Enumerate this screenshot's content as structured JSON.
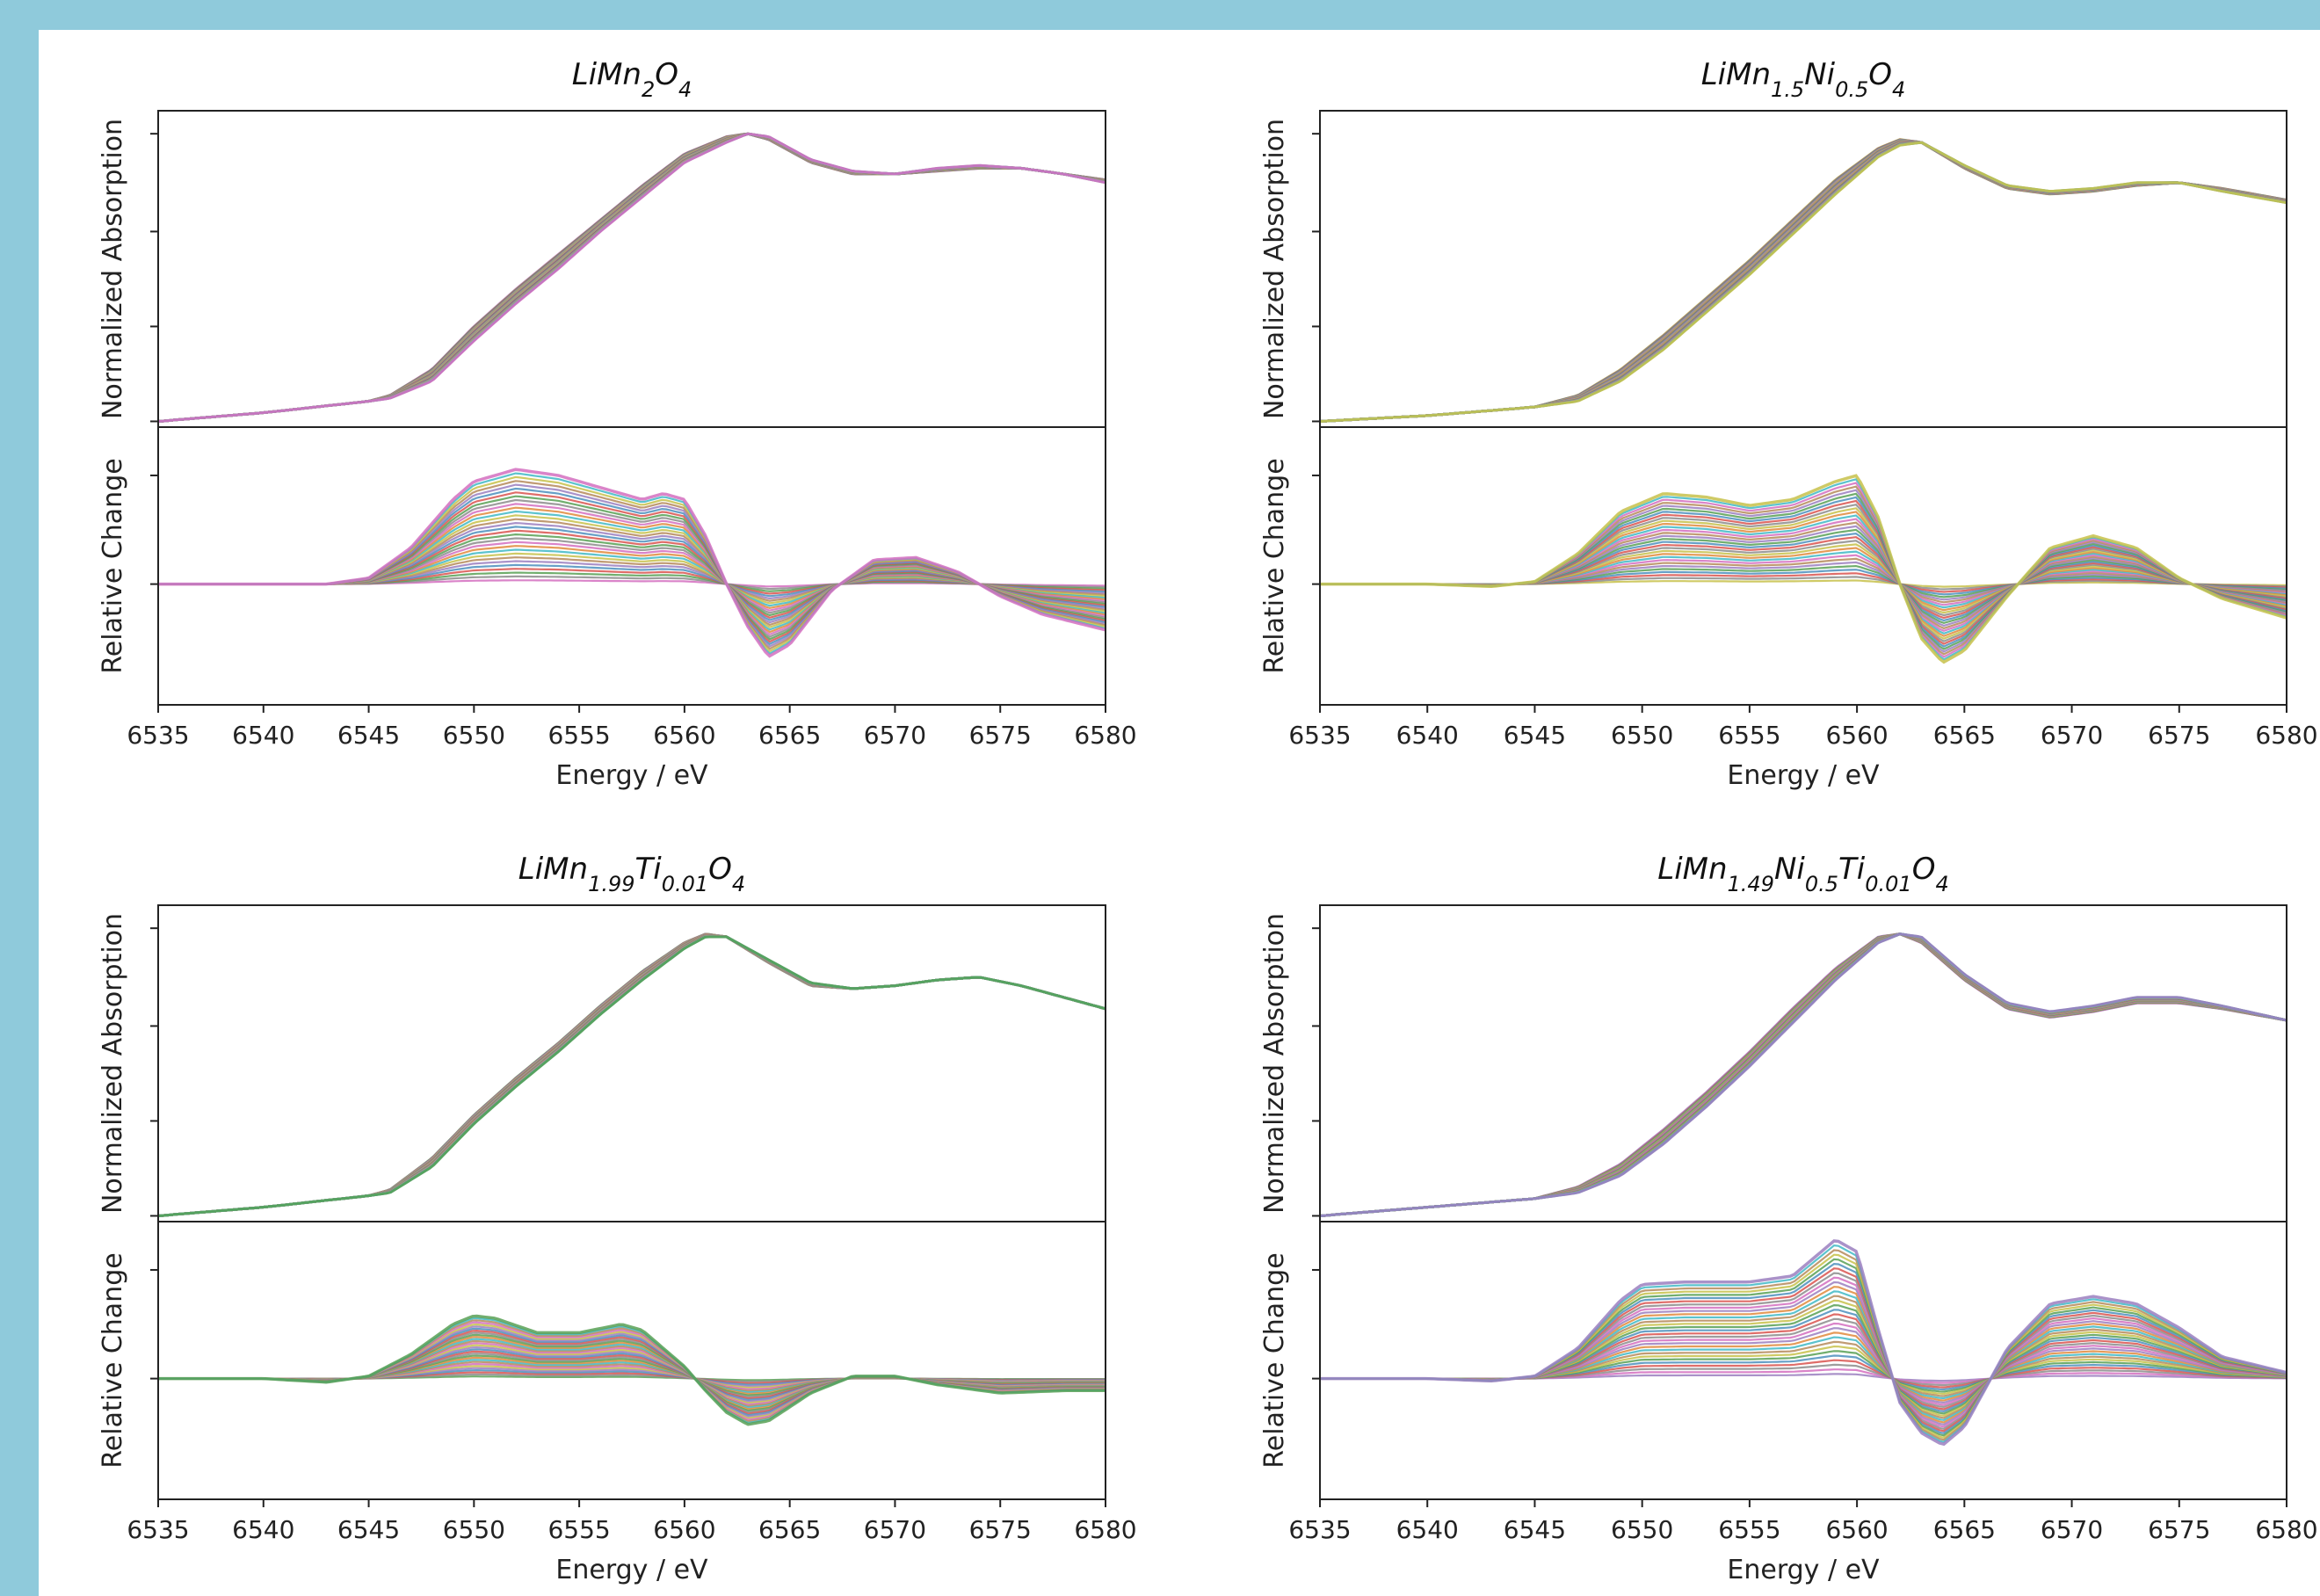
{
  "chart_data": [
    {
      "type": "line",
      "title": {
        "parts": [
          [
            "Li",
            ""
          ],
          [
            "Mn",
            ""
          ],
          [
            "2",
            "sub"
          ],
          [
            "O",
            ""
          ],
          [
            "4",
            "sub"
          ]
        ]
      },
      "top_ylabel": "Normalized Absorption",
      "bottom_ylabel": "Relative Change",
      "xlabel": "Energy / eV",
      "xlim": [
        6535,
        6580
      ],
      "x_ticks": [
        "6535",
        "6540",
        "6545",
        "6550",
        "6555",
        "6560",
        "6565",
        "6570",
        "6575",
        "6580"
      ],
      "colors": [
        "#d36fc0",
        "#8c8c8c",
        "#58a055",
        "#d9534f",
        "#4c8fbd",
        "#9b7fbf",
        "#b58a5a",
        "#c7c14a",
        "#3fb8c6",
        "#e08a3c"
      ],
      "edge_color": "#d36fc0",
      "series_count": 30,
      "absorption": {
        "x": [
          6535,
          6540,
          6545,
          6546,
          6548,
          6550,
          6552,
          6554,
          6556,
          6558,
          6560,
          6562,
          6563,
          6564,
          6566,
          6568,
          6570,
          6572,
          6574,
          6576,
          6578,
          6580
        ],
        "start": [
          0.0,
          0.03,
          0.07,
          0.09,
          0.18,
          0.33,
          0.46,
          0.58,
          0.7,
          0.82,
          0.93,
          0.99,
          1.0,
          0.98,
          0.9,
          0.86,
          0.86,
          0.87,
          0.88,
          0.88,
          0.86,
          0.84
        ],
        "end": [
          0.0,
          0.03,
          0.07,
          0.08,
          0.14,
          0.28,
          0.41,
          0.53,
          0.66,
          0.78,
          0.9,
          0.97,
          1.0,
          0.99,
          0.91,
          0.87,
          0.86,
          0.88,
          0.89,
          0.88,
          0.86,
          0.83
        ]
      },
      "relative_change": {
        "x": [
          6535,
          6540,
          6543,
          6545,
          6547,
          6549,
          6550,
          6552,
          6554,
          6556,
          6558,
          6559,
          6560,
          6561,
          6562,
          6563,
          6564,
          6565,
          6567,
          6569,
          6571,
          6573,
          6575,
          6577,
          6580
        ],
        "envelope": [
          0.0,
          0.0,
          0.0,
          0.05,
          0.3,
          0.7,
          0.85,
          0.95,
          0.9,
          0.8,
          0.7,
          0.75,
          0.7,
          0.4,
          0.0,
          -0.35,
          -0.6,
          -0.5,
          -0.05,
          0.2,
          0.22,
          0.1,
          -0.1,
          -0.25,
          -0.38
        ]
      },
      "top_ylim": [
        -0.02,
        1.08
      ],
      "bottom_ylim": [
        -1.0,
        1.3
      ]
    },
    {
      "type": "line",
      "title": {
        "parts": [
          [
            "Li",
            ""
          ],
          [
            "Mn",
            ""
          ],
          [
            "1.5",
            "sub"
          ],
          [
            "Ni",
            ""
          ],
          [
            "0.5",
            "sub"
          ],
          [
            "O",
            ""
          ],
          [
            "4",
            "sub"
          ]
        ]
      },
      "top_ylabel": "Normalized Absorption",
      "bottom_ylabel": "Relative Change",
      "xlabel": "Energy / eV",
      "xlim": [
        6535,
        6580
      ],
      "x_ticks": [
        "6535",
        "6540",
        "6545",
        "6550",
        "6555",
        "6560",
        "6565",
        "6570",
        "6575",
        "6580"
      ],
      "colors": [
        "#c7c14a",
        "#8c8c8c",
        "#d9534f",
        "#4c8fbd",
        "#58a055",
        "#9b7fbf",
        "#b58a5a",
        "#d36fc0",
        "#3fb8c6",
        "#e08a3c"
      ],
      "edge_color": "#c7c14a",
      "series_count": 30,
      "absorption": {
        "x": [
          6535,
          6540,
          6545,
          6547,
          6549,
          6551,
          6553,
          6555,
          6557,
          6559,
          6561,
          6562,
          6563,
          6565,
          6567,
          6569,
          6571,
          6573,
          6575,
          6577,
          6580
        ],
        "start": [
          0.0,
          0.02,
          0.05,
          0.09,
          0.18,
          0.3,
          0.43,
          0.56,
          0.7,
          0.84,
          0.95,
          0.98,
          0.97,
          0.88,
          0.81,
          0.79,
          0.8,
          0.82,
          0.83,
          0.81,
          0.77
        ],
        "end": [
          0.0,
          0.02,
          0.05,
          0.07,
          0.14,
          0.25,
          0.38,
          0.51,
          0.65,
          0.79,
          0.92,
          0.96,
          0.97,
          0.89,
          0.82,
          0.8,
          0.81,
          0.83,
          0.83,
          0.8,
          0.76
        ]
      },
      "relative_change": {
        "x": [
          6535,
          6540,
          6543,
          6545,
          6547,
          6549,
          6551,
          6553,
          6555,
          6557,
          6559,
          6560,
          6561,
          6562,
          6563,
          6564,
          6565,
          6567,
          6569,
          6571,
          6573,
          6575,
          6577,
          6580
        ],
        "envelope": [
          0.0,
          0.0,
          -0.02,
          0.02,
          0.25,
          0.6,
          0.75,
          0.72,
          0.65,
          0.7,
          0.85,
          0.9,
          0.55,
          0.0,
          -0.45,
          -0.65,
          -0.55,
          -0.1,
          0.3,
          0.4,
          0.3,
          0.05,
          -0.12,
          -0.28
        ]
      },
      "top_ylim": [
        -0.02,
        1.08
      ],
      "bottom_ylim": [
        -1.0,
        1.3
      ]
    },
    {
      "type": "line",
      "title": {
        "parts": [
          [
            "Li",
            ""
          ],
          [
            "Mn",
            ""
          ],
          [
            "1.99",
            "sub"
          ],
          [
            "Ti",
            ""
          ],
          [
            "0.01",
            "sub"
          ],
          [
            "O",
            ""
          ],
          [
            "4",
            "sub"
          ]
        ]
      },
      "top_ylabel": "Normalized Absorption",
      "bottom_ylabel": "Relative Change",
      "xlabel": "Energy / eV",
      "xlim": [
        6535,
        6580
      ],
      "x_ticks": [
        "6535",
        "6540",
        "6545",
        "6550",
        "6555",
        "6560",
        "6565",
        "6570",
        "6575",
        "6580"
      ],
      "colors": [
        "#58a055",
        "#8c8c8c",
        "#d9534f",
        "#4c8fbd",
        "#9b7fbf",
        "#c7c14a",
        "#d36fc0",
        "#b58a5a",
        "#3fb8c6",
        "#e08a3c"
      ],
      "edge_color": "#58a055",
      "series_count": 30,
      "absorption": {
        "x": [
          6535,
          6540,
          6545,
          6546,
          6548,
          6550,
          6552,
          6554,
          6556,
          6558,
          6560,
          6561,
          6562,
          6564,
          6566,
          6568,
          6570,
          6572,
          6574,
          6576,
          6578,
          6580
        ],
        "start": [
          0.0,
          0.03,
          0.07,
          0.09,
          0.2,
          0.35,
          0.48,
          0.6,
          0.73,
          0.85,
          0.95,
          0.98,
          0.97,
          0.88,
          0.8,
          0.79,
          0.8,
          0.82,
          0.83,
          0.8,
          0.76,
          0.72
        ],
        "end": [
          0.0,
          0.03,
          0.07,
          0.08,
          0.17,
          0.32,
          0.45,
          0.57,
          0.7,
          0.82,
          0.93,
          0.97,
          0.97,
          0.89,
          0.81,
          0.79,
          0.8,
          0.82,
          0.83,
          0.8,
          0.76,
          0.72
        ]
      },
      "relative_change": {
        "x": [
          6535,
          6540,
          6543,
          6545,
          6547,
          6549,
          6550,
          6551,
          6553,
          6555,
          6557,
          6558,
          6560,
          6561,
          6562,
          6563,
          6564,
          6566,
          6568,
          6570,
          6572,
          6575,
          6578,
          6580
        ],
        "envelope": [
          0.0,
          0.0,
          -0.03,
          0.02,
          0.2,
          0.45,
          0.52,
          0.5,
          0.38,
          0.38,
          0.45,
          0.4,
          0.1,
          -0.1,
          -0.28,
          -0.38,
          -0.35,
          -0.12,
          0.02,
          0.02,
          -0.05,
          -0.12,
          -0.1,
          -0.1
        ]
      },
      "top_ylim": [
        -0.02,
        1.08
      ],
      "bottom_ylim": [
        -1.0,
        1.3
      ]
    },
    {
      "type": "line",
      "title": {
        "parts": [
          [
            "Li",
            ""
          ],
          [
            "Mn",
            ""
          ],
          [
            "1.49",
            "sub"
          ],
          [
            "Ni",
            ""
          ],
          [
            "0.5",
            "sub"
          ],
          [
            "Ti",
            ""
          ],
          [
            "0.01",
            "sub"
          ],
          [
            "O",
            ""
          ],
          [
            "4",
            "sub"
          ]
        ]
      },
      "top_ylabel": "Normalized Absorption",
      "bottom_ylabel": "Relative Change",
      "xlabel": "Energy / eV",
      "xlim": [
        6535,
        6580
      ],
      "x_ticks": [
        "6535",
        "6540",
        "6545",
        "6550",
        "6555",
        "6560",
        "6565",
        "6570",
        "6575",
        "6580"
      ],
      "colors": [
        "#9b7fbf",
        "#d36fc0",
        "#8c8c8c",
        "#d9534f",
        "#4c8fbd",
        "#58a055",
        "#c7c14a",
        "#b58a5a",
        "#3fb8c6",
        "#e08a3c"
      ],
      "edge_color": "#9b7fbf",
      "series_count": 30,
      "absorption": {
        "x": [
          6535,
          6540,
          6545,
          6547,
          6549,
          6551,
          6553,
          6555,
          6557,
          6559,
          6561,
          6562,
          6563,
          6565,
          6567,
          6569,
          6571,
          6573,
          6575,
          6577,
          6580
        ],
        "start": [
          0.0,
          0.03,
          0.06,
          0.1,
          0.18,
          0.3,
          0.43,
          0.57,
          0.72,
          0.86,
          0.97,
          0.98,
          0.95,
          0.82,
          0.72,
          0.69,
          0.71,
          0.74,
          0.74,
          0.72,
          0.68
        ],
        "end": [
          0.0,
          0.03,
          0.06,
          0.08,
          0.14,
          0.25,
          0.38,
          0.52,
          0.67,
          0.82,
          0.95,
          0.98,
          0.97,
          0.84,
          0.74,
          0.71,
          0.73,
          0.76,
          0.76,
          0.73,
          0.68
        ]
      },
      "relative_change": {
        "x": [
          6535,
          6540,
          6543,
          6545,
          6547,
          6549,
          6550,
          6552,
          6555,
          6557,
          6559,
          6560,
          6561,
          6562,
          6563,
          6564,
          6565,
          6567,
          6569,
          6571,
          6573,
          6575,
          6577,
          6580
        ],
        "envelope": [
          0.0,
          0.0,
          -0.02,
          0.02,
          0.25,
          0.65,
          0.78,
          0.8,
          0.8,
          0.85,
          1.15,
          1.05,
          0.4,
          -0.2,
          -0.45,
          -0.55,
          -0.4,
          0.25,
          0.62,
          0.68,
          0.62,
          0.42,
          0.18,
          0.05
        ]
      },
      "top_ylim": [
        -0.02,
        1.08
      ],
      "bottom_ylim": [
        -1.0,
        1.3
      ]
    }
  ]
}
